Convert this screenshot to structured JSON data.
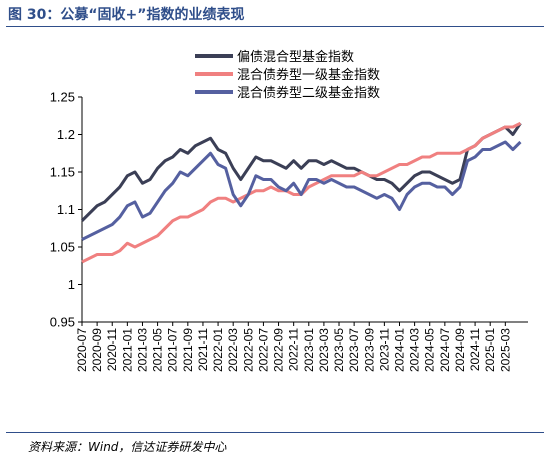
{
  "figure": {
    "title": "图 30：公募“固收+”指数的业绩表现",
    "source": "资料来源：Wind，信达证券研发中心"
  },
  "chart_data": {
    "type": "line",
    "ylim": [
      0.95,
      1.25
    ],
    "yticks": [
      0.95,
      1,
      1.05,
      1.1,
      1.15,
      1.2,
      1.25
    ],
    "ytick_labels": [
      "0.95",
      "1",
      "1.05",
      "1.1",
      "1.15",
      "1.2",
      "1.25"
    ],
    "xlim": [
      "2020-07",
      "2025-05"
    ],
    "xtick_labels": [
      "2020-07",
      "2020-09",
      "2020-11",
      "2021-01",
      "2021-03",
      "2021-05",
      "2021-07",
      "2021-09",
      "2021-11",
      "2022-01",
      "2022-03",
      "2022-05",
      "2022-07",
      "2022-09",
      "2022-11",
      "2023-01",
      "2023-03",
      "2023-05",
      "2023-07",
      "2023-09",
      "2023-11",
      "2024-01",
      "2024-03",
      "2024-05",
      "2024-07",
      "2024-09",
      "2024-11",
      "2025-01",
      "2025-03"
    ],
    "legend_position": "top-center",
    "grid": false,
    "series": [
      {
        "name": "偏债混合型基金指数",
        "color": "#3b3f56",
        "points": [
          [
            "2020-07-01",
            1.085
          ],
          [
            "2020-08-01",
            1.095
          ],
          [
            "2020-09-01",
            1.105
          ],
          [
            "2020-10-01",
            1.11
          ],
          [
            "2020-11-01",
            1.12
          ],
          [
            "2020-12-01",
            1.13
          ],
          [
            "2021-01-01",
            1.145
          ],
          [
            "2021-02-01",
            1.15
          ],
          [
            "2021-03-01",
            1.135
          ],
          [
            "2021-04-01",
            1.14
          ],
          [
            "2021-05-01",
            1.155
          ],
          [
            "2021-06-01",
            1.165
          ],
          [
            "2021-07-01",
            1.17
          ],
          [
            "2021-08-01",
            1.18
          ],
          [
            "2021-09-01",
            1.175
          ],
          [
            "2021-10-01",
            1.185
          ],
          [
            "2021-11-01",
            1.19
          ],
          [
            "2021-12-01",
            1.195
          ],
          [
            "2022-01-01",
            1.18
          ],
          [
            "2022-02-01",
            1.175
          ],
          [
            "2022-03-01",
            1.155
          ],
          [
            "2022-04-01",
            1.14
          ],
          [
            "2022-05-01",
            1.155
          ],
          [
            "2022-06-01",
            1.17
          ],
          [
            "2022-07-01",
            1.165
          ],
          [
            "2022-08-01",
            1.165
          ],
          [
            "2022-09-01",
            1.16
          ],
          [
            "2022-10-01",
            1.155
          ],
          [
            "2022-11-01",
            1.165
          ],
          [
            "2022-12-01",
            1.155
          ],
          [
            "2023-01-01",
            1.165
          ],
          [
            "2023-02-01",
            1.165
          ],
          [
            "2023-03-01",
            1.16
          ],
          [
            "2023-04-01",
            1.165
          ],
          [
            "2023-05-01",
            1.16
          ],
          [
            "2023-06-01",
            1.155
          ],
          [
            "2023-07-01",
            1.155
          ],
          [
            "2023-08-01",
            1.15
          ],
          [
            "2023-09-01",
            1.145
          ],
          [
            "2023-10-01",
            1.14
          ],
          [
            "2023-11-01",
            1.14
          ],
          [
            "2023-12-01",
            1.135
          ],
          [
            "2024-01-01",
            1.125
          ],
          [
            "2024-02-01",
            1.135
          ],
          [
            "2024-03-01",
            1.145
          ],
          [
            "2024-04-01",
            1.15
          ],
          [
            "2024-05-01",
            1.15
          ],
          [
            "2024-06-01",
            1.145
          ],
          [
            "2024-07-01",
            1.14
          ],
          [
            "2024-08-01",
            1.135
          ],
          [
            "2024-09-01",
            1.14
          ],
          [
            "2024-10-01",
            1.18
          ],
          [
            "2024-11-01",
            1.185
          ],
          [
            "2024-12-01",
            1.195
          ],
          [
            "2025-01-01",
            1.2
          ],
          [
            "2025-02-01",
            1.205
          ],
          [
            "2025-03-01",
            1.21
          ],
          [
            "2025-04-01",
            1.2
          ],
          [
            "2025-05-01",
            1.215
          ]
        ]
      },
      {
        "name": "混合债券型一级基金指数",
        "color": "#f08080",
        "points": [
          [
            "2020-07-01",
            1.03
          ],
          [
            "2020-08-01",
            1.035
          ],
          [
            "2020-09-01",
            1.04
          ],
          [
            "2020-10-01",
            1.04
          ],
          [
            "2020-11-01",
            1.04
          ],
          [
            "2020-12-01",
            1.045
          ],
          [
            "2021-01-01",
            1.055
          ],
          [
            "2021-02-01",
            1.05
          ],
          [
            "2021-03-01",
            1.055
          ],
          [
            "2021-04-01",
            1.06
          ],
          [
            "2021-05-01",
            1.065
          ],
          [
            "2021-06-01",
            1.075
          ],
          [
            "2021-07-01",
            1.085
          ],
          [
            "2021-08-01",
            1.09
          ],
          [
            "2021-09-01",
            1.09
          ],
          [
            "2021-10-01",
            1.095
          ],
          [
            "2021-11-01",
            1.1
          ],
          [
            "2021-12-01",
            1.11
          ],
          [
            "2022-01-01",
            1.115
          ],
          [
            "2022-02-01",
            1.115
          ],
          [
            "2022-03-01",
            1.11
          ],
          [
            "2022-04-01",
            1.115
          ],
          [
            "2022-05-01",
            1.12
          ],
          [
            "2022-06-01",
            1.125
          ],
          [
            "2022-07-01",
            1.125
          ],
          [
            "2022-08-01",
            1.13
          ],
          [
            "2022-09-01",
            1.125
          ],
          [
            "2022-10-01",
            1.125
          ],
          [
            "2022-11-01",
            1.12
          ],
          [
            "2022-12-01",
            1.12
          ],
          [
            "2023-01-01",
            1.13
          ],
          [
            "2023-02-01",
            1.135
          ],
          [
            "2023-03-01",
            1.14
          ],
          [
            "2023-04-01",
            1.145
          ],
          [
            "2023-05-01",
            1.145
          ],
          [
            "2023-06-01",
            1.145
          ],
          [
            "2023-07-01",
            1.145
          ],
          [
            "2023-08-01",
            1.15
          ],
          [
            "2023-09-01",
            1.145
          ],
          [
            "2023-10-01",
            1.145
          ],
          [
            "2023-11-01",
            1.15
          ],
          [
            "2023-12-01",
            1.155
          ],
          [
            "2024-01-01",
            1.16
          ],
          [
            "2024-02-01",
            1.16
          ],
          [
            "2024-03-01",
            1.165
          ],
          [
            "2024-04-01",
            1.17
          ],
          [
            "2024-05-01",
            1.17
          ],
          [
            "2024-06-01",
            1.175
          ],
          [
            "2024-07-01",
            1.175
          ],
          [
            "2024-08-01",
            1.175
          ],
          [
            "2024-09-01",
            1.175
          ],
          [
            "2024-10-01",
            1.18
          ],
          [
            "2024-11-01",
            1.185
          ],
          [
            "2024-12-01",
            1.195
          ],
          [
            "2025-01-01",
            1.2
          ],
          [
            "2025-02-01",
            1.205
          ],
          [
            "2025-03-01",
            1.21
          ],
          [
            "2025-04-01",
            1.21
          ],
          [
            "2025-05-01",
            1.215
          ]
        ]
      },
      {
        "name": "混合债券型二级基金指数",
        "color": "#5560a0",
        "points": [
          [
            "2020-07-01",
            1.06
          ],
          [
            "2020-08-01",
            1.065
          ],
          [
            "2020-09-01",
            1.07
          ],
          [
            "2020-10-01",
            1.075
          ],
          [
            "2020-11-01",
            1.08
          ],
          [
            "2020-12-01",
            1.09
          ],
          [
            "2021-01-01",
            1.105
          ],
          [
            "2021-02-01",
            1.11
          ],
          [
            "2021-03-01",
            1.09
          ],
          [
            "2021-04-01",
            1.095
          ],
          [
            "2021-05-01",
            1.11
          ],
          [
            "2021-06-01",
            1.125
          ],
          [
            "2021-07-01",
            1.135
          ],
          [
            "2021-08-01",
            1.15
          ],
          [
            "2021-09-01",
            1.145
          ],
          [
            "2021-10-01",
            1.155
          ],
          [
            "2021-11-01",
            1.165
          ],
          [
            "2021-12-01",
            1.175
          ],
          [
            "2022-01-01",
            1.16
          ],
          [
            "2022-02-01",
            1.155
          ],
          [
            "2022-03-01",
            1.12
          ],
          [
            "2022-04-01",
            1.105
          ],
          [
            "2022-05-01",
            1.12
          ],
          [
            "2022-06-01",
            1.145
          ],
          [
            "2022-07-01",
            1.14
          ],
          [
            "2022-08-01",
            1.14
          ],
          [
            "2022-09-01",
            1.13
          ],
          [
            "2022-10-01",
            1.125
          ],
          [
            "2022-11-01",
            1.135
          ],
          [
            "2022-12-01",
            1.12
          ],
          [
            "2023-01-01",
            1.14
          ],
          [
            "2023-02-01",
            1.14
          ],
          [
            "2023-03-01",
            1.135
          ],
          [
            "2023-04-01",
            1.14
          ],
          [
            "2023-05-01",
            1.135
          ],
          [
            "2023-06-01",
            1.13
          ],
          [
            "2023-07-01",
            1.13
          ],
          [
            "2023-08-01",
            1.125
          ],
          [
            "2023-09-01",
            1.12
          ],
          [
            "2023-10-01",
            1.115
          ],
          [
            "2023-11-01",
            1.12
          ],
          [
            "2023-12-01",
            1.115
          ],
          [
            "2024-01-01",
            1.1
          ],
          [
            "2024-02-01",
            1.12
          ],
          [
            "2024-03-01",
            1.13
          ],
          [
            "2024-04-01",
            1.135
          ],
          [
            "2024-05-01",
            1.135
          ],
          [
            "2024-06-01",
            1.13
          ],
          [
            "2024-07-01",
            1.13
          ],
          [
            "2024-08-01",
            1.12
          ],
          [
            "2024-09-01",
            1.13
          ],
          [
            "2024-10-01",
            1.165
          ],
          [
            "2024-11-01",
            1.17
          ],
          [
            "2024-12-01",
            1.18
          ],
          [
            "2025-01-01",
            1.18
          ],
          [
            "2025-02-01",
            1.185
          ],
          [
            "2025-03-01",
            1.19
          ],
          [
            "2025-04-01",
            1.18
          ],
          [
            "2025-05-01",
            1.19
          ]
        ]
      }
    ]
  }
}
